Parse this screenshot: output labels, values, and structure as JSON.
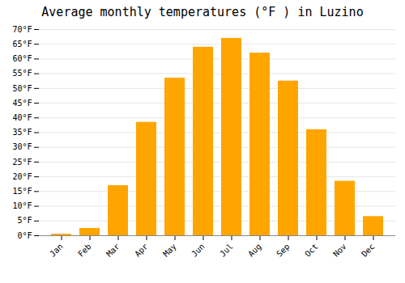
{
  "chart_data": {
    "type": "bar",
    "title": "Average monthly temperatures (°F ) in Luzino",
    "categories": [
      "Jan",
      "Feb",
      "Mar",
      "Apr",
      "May",
      "Jun",
      "Jul",
      "Aug",
      "Sep",
      "Oct",
      "Nov",
      "Dec"
    ],
    "values": [
      0.5,
      2.5,
      17.0,
      38.5,
      53.5,
      64.0,
      67.0,
      62.0,
      52.5,
      36.0,
      18.5,
      6.5
    ],
    "color": "#FFA500",
    "ylim": [
      0,
      70
    ],
    "yticks": [
      {
        "value": 0,
        "label": "0°F"
      },
      {
        "value": 5,
        "label": "5°F"
      },
      {
        "value": 10,
        "label": "10°F"
      },
      {
        "value": 15,
        "label": "15°F"
      },
      {
        "value": 20,
        "label": "20°F"
      },
      {
        "value": 25,
        "label": "25°F"
      },
      {
        "value": 30,
        "label": "30°F"
      },
      {
        "value": 35,
        "label": "35°F"
      },
      {
        "value": 40,
        "label": "40°F"
      },
      {
        "value": 45,
        "label": "45°F"
      },
      {
        "value": 50,
        "label": "50°F"
      },
      {
        "value": 55,
        "label": "55°F"
      },
      {
        "value": 60,
        "label": "60°F"
      },
      {
        "value": 65,
        "label": "65°F"
      },
      {
        "value": 70,
        "label": "70°F"
      }
    ],
    "grid": true
  }
}
